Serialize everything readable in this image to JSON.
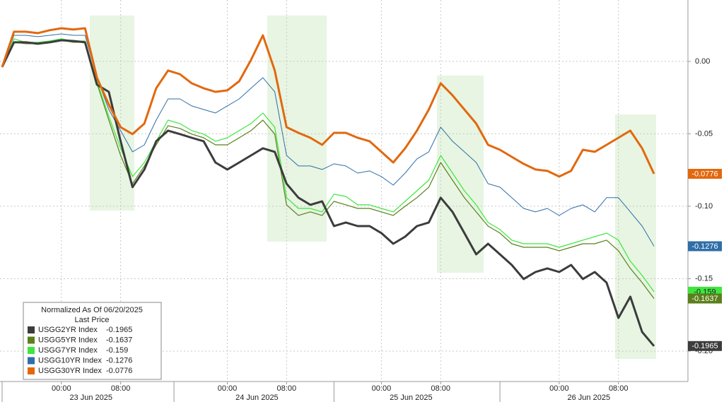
{
  "chart_data": {
    "type": "line",
    "legend_title": "Normalized As Of 06/20/2025",
    "legend_subtitle": "Last Price",
    "categories": [
      null,
      null,
      null,
      null,
      null,
      "00:00",
      null,
      null,
      null,
      null,
      "08:00",
      null,
      null,
      null,
      null,
      null,
      null,
      null,
      null,
      "00:00",
      null,
      null,
      null,
      null,
      "08:00",
      null,
      null,
      null,
      null,
      null,
      null,
      null,
      "00:00",
      null,
      null,
      null,
      null,
      "08:00",
      null,
      null,
      null,
      null,
      null,
      null,
      null,
      null,
      null,
      "00:00",
      null,
      null,
      null,
      null,
      "08:00",
      null,
      null,
      null
    ],
    "dates": [
      "23 Jun 2025",
      "24 Jun 2025",
      "25 Jun 2025",
      "26 Jun 2025"
    ],
    "ylim": [
      -0.221,
      0.0424
    ],
    "yticks": [
      {
        "value": 0,
        "label": "0.00"
      },
      -0.05,
      {
        "value": -0.1,
        "label": "-0.10"
      },
      -0.15,
      {
        "value": -0.2,
        "label": "-0.20"
      }
    ],
    "grid": true,
    "series": [
      {
        "name": "USGG2YR Index",
        "color": "#3c3c3c",
        "width": 3,
        "values": [
          -0.0039,
          0.0132,
          0.0132,
          0.0122,
          0.0132,
          0.0146,
          0.0141,
          0.0132,
          -0.0161,
          -0.021,
          -0.0551,
          -0.0868,
          -0.0746,
          -0.0551,
          -0.0478,
          -0.0502,
          -0.0527,
          -0.0551,
          -0.0698,
          -0.0746,
          -0.0698,
          -0.0649,
          -0.06,
          -0.0624,
          -0.0844,
          -0.0941,
          -0.099,
          -0.0966,
          -0.1137,
          -0.1112,
          -0.1137,
          -0.1137,
          -0.1185,
          -0.1259,
          -0.121,
          -0.1137,
          -0.1112,
          -0.0941,
          -0.1039,
          -0.1185,
          -0.1332,
          -0.1259,
          -0.1332,
          -0.1405,
          -0.1502,
          -0.1454,
          -0.1429,
          -0.1454,
          -0.1405,
          -0.1502,
          -0.1454,
          -0.1527,
          -0.1771,
          -0.1624,
          -0.1868,
          -0.1965
        ]
      },
      {
        "name": "USGG5YR Index",
        "color": "#5b7f1c",
        "width": 1.2,
        "values": [
          -0.0039,
          0.0132,
          0.0122,
          0.0122,
          0.0132,
          0.0146,
          0.0132,
          0.0132,
          -0.0151,
          -0.0405,
          -0.0649,
          -0.0844,
          -0.0722,
          -0.0576,
          -0.0444,
          -0.0463,
          -0.0502,
          -0.0527,
          -0.0576,
          -0.0576,
          -0.0527,
          -0.0478,
          -0.0405,
          -0.0502,
          -0.099,
          -0.1063,
          -0.1039,
          -0.1063,
          -0.0966,
          -0.099,
          -0.1015,
          -0.1015,
          -0.1039,
          -0.1063,
          -0.1,
          -0.0941,
          -0.0868,
          -0.0698,
          -0.082,
          -0.0941,
          -0.1039,
          -0.1137,
          -0.1185,
          -0.1259,
          -0.1283,
          -0.1283,
          -0.1283,
          -0.1307,
          -0.1283,
          -0.1259,
          -0.1259,
          -0.1234,
          -0.1307,
          -0.1429,
          -0.1527,
          -0.1637
        ]
      },
      {
        "name": "USGG7YR Index",
        "color": "#3ee63e",
        "width": 1.2,
        "values": [
          -0.0039,
          0.0156,
          0.0132,
          0.0132,
          0.0141,
          0.0156,
          0.0141,
          0.0141,
          -0.0137,
          -0.038,
          -0.06,
          -0.0795,
          -0.0698,
          -0.0551,
          -0.0405,
          -0.0429,
          -0.0478,
          -0.0502,
          -0.0551,
          -0.0527,
          -0.0478,
          -0.0429,
          -0.0356,
          -0.0454,
          -0.0941,
          -0.1015,
          -0.1015,
          -0.1039,
          -0.0917,
          -0.0932,
          -0.099,
          -0.099,
          -0.1015,
          -0.1039,
          -0.0966,
          -0.0893,
          -0.082,
          -0.0649,
          -0.0771,
          -0.0893,
          -0.099,
          -0.1112,
          -0.1161,
          -0.1234,
          -0.1259,
          -0.1259,
          -0.1259,
          -0.1283,
          -0.1259,
          -0.1234,
          -0.121,
          -0.1185,
          -0.1234,
          -0.138,
          -0.1478,
          -0.159
        ]
      },
      {
        "name": "USGG10YR Index",
        "color": "#2f6ea8",
        "width": 1,
        "values": [
          -0.0039,
          0.018,
          0.018,
          0.0171,
          0.018,
          0.019,
          0.018,
          0.018,
          -0.0112,
          -0.0332,
          -0.0478,
          -0.0624,
          -0.0576,
          -0.0405,
          -0.0259,
          -0.0259,
          -0.0307,
          -0.0332,
          -0.0356,
          -0.0307,
          -0.0259,
          -0.0185,
          -0.0112,
          -0.021,
          -0.0649,
          -0.0722,
          -0.0722,
          -0.0746,
          -0.0707,
          -0.0722,
          -0.0771,
          -0.0756,
          -0.0795,
          -0.0854,
          -0.0771,
          -0.0673,
          -0.0624,
          -0.0454,
          -0.0551,
          -0.0624,
          -0.0698,
          -0.0844,
          -0.0868,
          -0.0941,
          -0.1015,
          -0.1039,
          -0.1015,
          -0.1063,
          -0.1015,
          -0.099,
          -0.1039,
          -0.0941,
          -0.0941,
          -0.1039,
          -0.1137,
          -0.1276
        ]
      },
      {
        "name": "USGG30YR Index",
        "color": "#e2680e",
        "width": 3,
        "values": [
          -0.0039,
          0.0205,
          0.0205,
          0.0195,
          0.0215,
          0.0229,
          0.022,
          0.0229,
          -0.0112,
          -0.0298,
          -0.0454,
          -0.0502,
          -0.0429,
          -0.0185,
          -0.0063,
          -0.0088,
          -0.0151,
          -0.0185,
          -0.021,
          -0.02,
          -0.0137,
          0.001,
          0.018,
          -0.0063,
          -0.0454,
          -0.0493,
          -0.0527,
          -0.0576,
          -0.0493,
          -0.0493,
          -0.0527,
          -0.0551,
          -0.0624,
          -0.0698,
          -0.06,
          -0.0478,
          -0.0332,
          -0.0151,
          -0.0234,
          -0.0332,
          -0.0429,
          -0.0576,
          -0.061,
          -0.0659,
          -0.0707,
          -0.0746,
          -0.0756,
          -0.0795,
          -0.0756,
          -0.061,
          -0.0624,
          -0.0576,
          -0.0527,
          -0.0478,
          -0.06,
          -0.0776
        ]
      }
    ]
  }
}
